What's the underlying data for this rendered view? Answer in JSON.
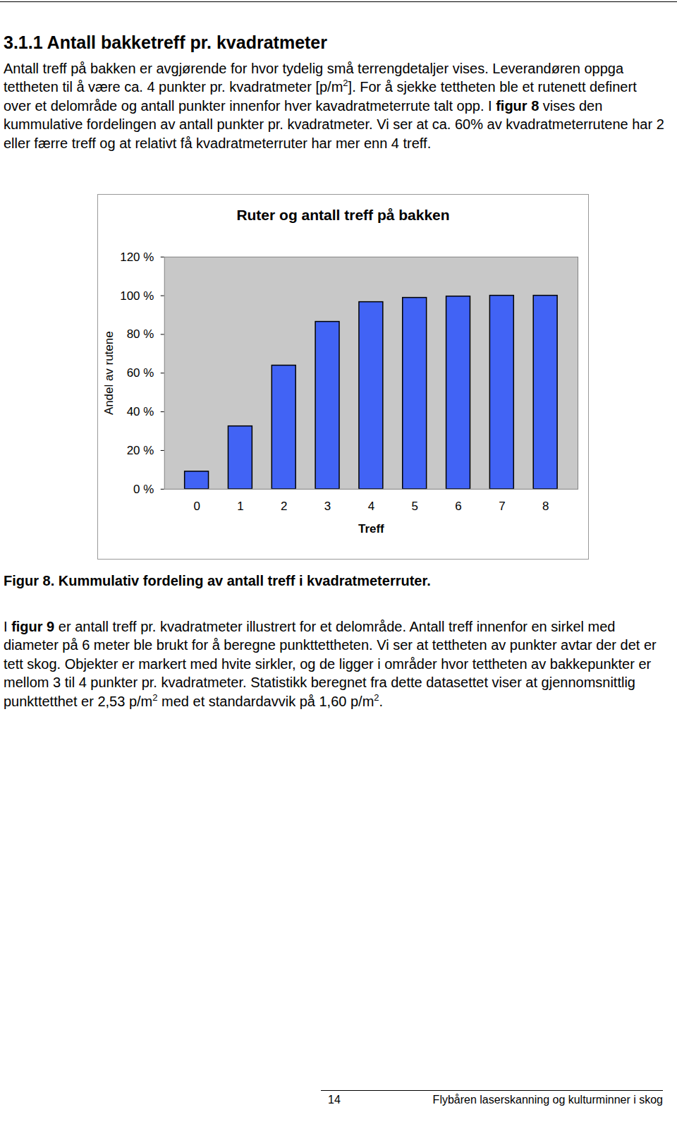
{
  "heading": "3.1.1 Antall bakketreff pr. kvadratmeter",
  "paragraph_1": [
    {
      "text": "Antall treff på bakken er avgjørende for hvor tydelig små terrengdetaljer vises. Leverandøren oppga tettheten til å være ca. 4 punkter pr. kvadratmeter [p/m"
    },
    {
      "text": "2",
      "sup": true
    },
    {
      "text": "]. For å sjekke tettheten ble et rutenett definert over et delområde og antall punkter innenfor hver kavadratmeterrute talt opp. I "
    },
    {
      "text": "figur 8",
      "bold": true
    },
    {
      "text": " vises den kummulative fordelingen av antall punkter pr. kvadratmeter. Vi ser at ca. 60% av kvadratmeterrutene har 2 eller færre treff og at relativt få kvadratmeterruter har mer enn 4 treff."
    }
  ],
  "chart_data": {
    "type": "bar",
    "title": "Ruter og antall treff på bakken",
    "x_label": "Treff",
    "y_label": "Andel av rutene",
    "categories": [
      "0",
      "1",
      "2",
      "3",
      "4",
      "5",
      "6",
      "7",
      "8"
    ],
    "values": [
      9.1,
      32.5,
      63.9,
      86.5,
      96.7,
      98.9,
      99.6,
      100,
      100
    ],
    "color": "#4163f5",
    "ylim": [
      0,
      120
    ],
    "yticks": [
      {
        "value": 0,
        "label": "0 %"
      },
      {
        "value": 20,
        "label": "20 %"
      },
      {
        "value": 40,
        "label": "40 %"
      },
      {
        "value": 60,
        "label": "60 %"
      },
      {
        "value": 80,
        "label": "80 %"
      },
      {
        "value": 100,
        "label": "100 %"
      },
      {
        "value": 120,
        "label": "120 %"
      }
    ],
    "grid": false,
    "data_labels": false
  },
  "caption": "Figur 8. Kummulativ fordeling av antall treff i kvadratmeterruter.",
  "paragraph_2": [
    {
      "text": "I "
    },
    {
      "text": "figur 9",
      "bold": true
    },
    {
      "text": " er antall treff pr. kvadratmeter illustrert for et delområde. Antall treff innenfor en sirkel med diameter på 6 meter ble brukt for å beregne punkttettheten. Vi ser at tettheten av punkter avtar der det er tett skog. Objekter er markert med hvite sirkler, og de ligger i områder hvor tettheten av bakkepunkter er mellom 3 til 4 punkter pr. kvadratmeter. Statistikk beregnet fra dette datasettet viser at gjennomsnittlig punkttetthet er 2,53 p/m"
    },
    {
      "text": "2",
      "sup": true
    },
    {
      "text": " med et standardavvik på 1,60 p/m"
    },
    {
      "text": "2",
      "sup": true
    },
    {
      "text": "."
    }
  ],
  "footer": {
    "page": "14",
    "title": "Flybåren laserskanning og kulturminner i skog"
  }
}
